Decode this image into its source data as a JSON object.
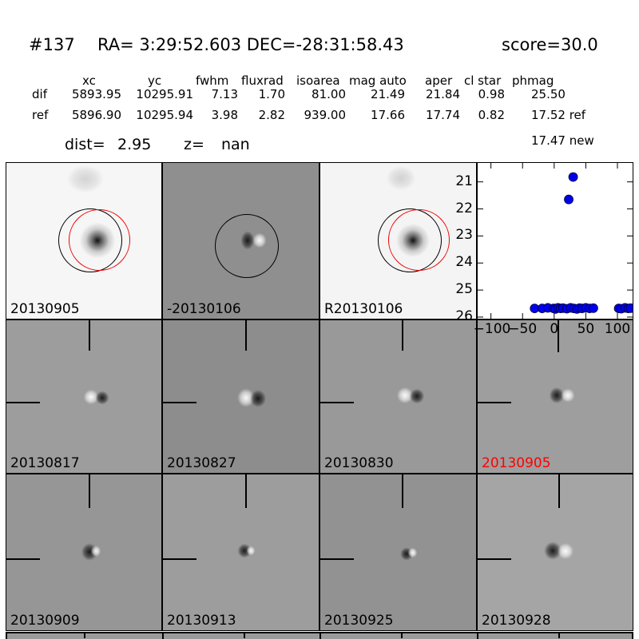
{
  "title": {
    "id": "#137",
    "coords": "RA= 3:29:52.603 DEC=-28:31:58.43",
    "score": "score=30.0"
  },
  "table": {
    "headers": {
      "xc": "xc",
      "yc": "yc",
      "fwhm": "fwhm",
      "fluxrad": "fluxrad",
      "isoarea": "isoarea",
      "mag_auto": "mag auto",
      "aper": "aper",
      "cl_star": "cl star",
      "phmag": "phmag"
    },
    "dif": {
      "name": "dif",
      "xc": "5893.95",
      "yc": "10295.91",
      "fwhm": "7.13",
      "fluxrad": "1.70",
      "isoarea": "81.00",
      "mag_auto": "21.49",
      "aper": "21.84",
      "cl_star": "0.98",
      "phmag": "25.50"
    },
    "ref": {
      "name": "ref",
      "xc": "5896.90",
      "yc": "10295.94",
      "fwhm": "3.98",
      "fluxrad": "2.82",
      "isoarea": "939.00",
      "mag_auto": "17.66",
      "aper": "17.74",
      "cl_star": "0.82",
      "phmag": "17.52 ref"
    },
    "phmag_new": "17.47 new",
    "dist_label": "dist=",
    "dist_value": "2.95",
    "z_label": "z=",
    "z_value": "nan"
  },
  "panels": [
    {
      "label": "20130905",
      "label_color": "#000000"
    },
    {
      "label": "-20130106",
      "label_color": "#000000"
    },
    {
      "label": "R20130106",
      "label_color": "#000000"
    },
    {
      "label": "20130817",
      "label_color": "#000000"
    },
    {
      "label": "20130827",
      "label_color": "#000000"
    },
    {
      "label": "20130830",
      "label_color": "#000000"
    },
    {
      "label": "20130905",
      "label_color": "#ff0000"
    },
    {
      "label": "20130909",
      "label_color": "#000000"
    },
    {
      "label": "20130913",
      "label_color": "#000000"
    },
    {
      "label": "20130925",
      "label_color": "#000000"
    },
    {
      "label": "20130928",
      "label_color": "#000000"
    }
  ],
  "chart_data": {
    "type": "scatter",
    "title": "",
    "xlabel": "",
    "ylabel": "",
    "xlim": [
      -121,
      124
    ],
    "ylim": [
      20.3,
      26.06
    ],
    "y_axis_inverted": true,
    "grid": false,
    "x_ticks": [
      "−100",
      "−50",
      "0",
      "50",
      "100"
    ],
    "x_tick_values": [
      -100,
      -50,
      0,
      50,
      100
    ],
    "y_ticks": [
      "21",
      "22",
      "23",
      "24",
      "25",
      "26"
    ],
    "y_tick_values": [
      21,
      22,
      23,
      24,
      25,
      26
    ],
    "marker": {
      "shape": "circle",
      "color": "#0000ee",
      "edge": "#000033",
      "size": 11
    },
    "points": [
      {
        "x": 30,
        "mag": 20.82
      },
      {
        "x": 23,
        "mag": 21.65
      },
      {
        "x": -31,
        "mag": 25.68
      },
      {
        "x": -19,
        "mag": 25.68
      },
      {
        "x": -10,
        "mag": 25.66
      },
      {
        "x": -1,
        "mag": 25.68
      },
      {
        "x": 2,
        "mag": 25.7
      },
      {
        "x": 6,
        "mag": 25.66
      },
      {
        "x": 10,
        "mag": 25.68
      },
      {
        "x": 14,
        "mag": 25.67
      },
      {
        "x": 20,
        "mag": 25.69
      },
      {
        "x": 26,
        "mag": 25.66
      },
      {
        "x": 31,
        "mag": 25.68
      },
      {
        "x": 36,
        "mag": 25.7
      },
      {
        "x": 40,
        "mag": 25.67
      },
      {
        "x": 44,
        "mag": 25.68
      },
      {
        "x": 50,
        "mag": 25.66
      },
      {
        "x": 56,
        "mag": 25.68
      },
      {
        "x": 62,
        "mag": 25.67
      },
      {
        "x": 102,
        "mag": 25.68
      },
      {
        "x": 106,
        "mag": 25.69
      },
      {
        "x": 112,
        "mag": 25.66
      },
      {
        "x": 117,
        "mag": 25.68
      },
      {
        "x": 121,
        "mag": 25.67
      }
    ]
  }
}
